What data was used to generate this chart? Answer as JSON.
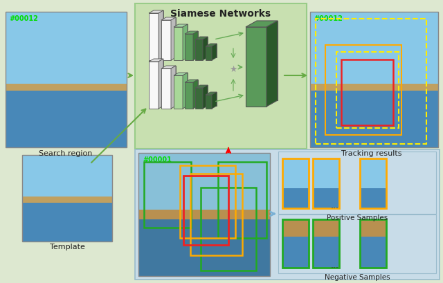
{
  "bg_color": "#dde8d0",
  "fig_width": 6.4,
  "fig_height": 4.09,
  "title": "Siamese Networks",
  "siamese_bg": "#c8e0b0",
  "bottom_bg": "#c8dce8",
  "search_label": "Search region",
  "tracking_label": "Tracking results",
  "template_label": "Template",
  "positive_label": "Positive Samples",
  "negative_label": "Negative Samples",
  "frame_label_color": "#00cc00",
  "label_fontsize": 8,
  "small_fontsize": 7.5,
  "white_c": "#f8f8f8",
  "lt_green": "#a8d898",
  "mid_green": "#5a9a5a",
  "dk_green": "#3a6a3a",
  "sky_color": "#88c8e8",
  "water_color": "#4888b8",
  "sand_color": "#c0a060",
  "dark_water": "#3870a0"
}
